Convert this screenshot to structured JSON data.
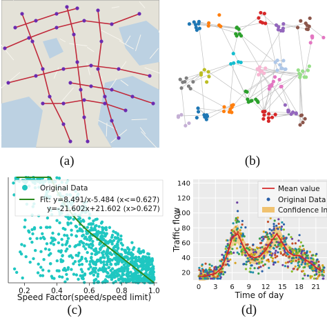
{
  "captions": {
    "a": "(a)",
    "b": "(b)",
    "c": "(c)",
    "d": "(d)"
  },
  "colors": {
    "map_land": "#e4e2d8",
    "map_water": "#bcd1e2",
    "road": "#c0283a",
    "node": "#6b2bb0",
    "graph_edge": "#c0c0c0",
    "scatter_c": "#1fc7c1",
    "fit_c": "#2b8a1e",
    "mean_line": "#d62728",
    "band": "#f0c270",
    "plot_bg": "#ebebeb"
  },
  "chart_data": [
    {
      "id": "c",
      "type": "scatter",
      "title": "",
      "xlabel": "Speed Factor(speed/speed limit)",
      "ylabel": "",
      "xlim": [
        0.1,
        1.02
      ],
      "xticks": [
        "0.2",
        "0.4",
        "0.6",
        "0.8",
        "1.0"
      ],
      "xtick_values": [
        0.2,
        0.4,
        0.6,
        0.8,
        1.0
      ],
      "legend": {
        "placement": "top-right",
        "entries": [
          "Original Data",
          "Fit: y=8.491/x-5.484 (x<=0.627)",
          "y=-21.602x+21.602 (x>0.627)"
        ]
      },
      "fit": {
        "piece1": {
          "a": 8.491,
          "b": -5.484,
          "x_max": 0.627
        },
        "piece2": {
          "slope": -21.602,
          "intercept": 21.602
        }
      },
      "series": [
        {
          "name": "Original Data",
          "style": "dense scatter below fit curve"
        }
      ]
    },
    {
      "id": "d",
      "type": "line",
      "title": "",
      "xlabel": "Time of day",
      "ylabel": "Traffic flow",
      "xlim": [
        -1,
        23
      ],
      "ylim": [
        10,
        145
      ],
      "xticks": [
        "0",
        "3",
        "6",
        "9",
        "12",
        "15",
        "18",
        "21"
      ],
      "xtick_values": [
        0,
        3,
        6,
        9,
        12,
        15,
        18,
        21
      ],
      "yticks": [
        "20",
        "40",
        "60",
        "80",
        "100",
        "120",
        "140"
      ],
      "ytick_values": [
        20,
        40,
        60,
        80,
        100,
        120,
        140
      ],
      "grid": true,
      "legend": {
        "placement": "top-right",
        "entries": [
          "Mean value",
          "Original Data",
          "Confidence Inte"
        ]
      },
      "series": [
        {
          "name": "Mean value",
          "x": [
            0,
            1,
            2,
            3,
            4,
            5,
            6,
            7,
            8,
            9,
            10,
            11,
            12,
            13,
            14,
            15,
            16,
            17,
            18,
            19,
            20,
            21,
            22
          ],
          "values": [
            15,
            15,
            17,
            19,
            25,
            42,
            67,
            72,
            55,
            43,
            40,
            42,
            50,
            62,
            72,
            60,
            48,
            43,
            43,
            38,
            33,
            27,
            22
          ]
        }
      ]
    }
  ]
}
